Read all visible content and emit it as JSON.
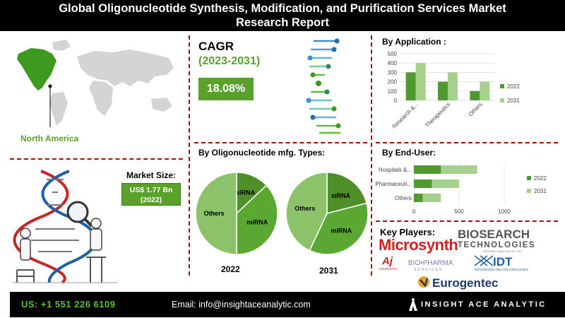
{
  "header": {
    "title_line1": "Global Oligonucleotide Synthesis, Modification, and Purification Services Market",
    "title_line2": "Research Report"
  },
  "map": {
    "region_label": "North America"
  },
  "cagr": {
    "title": "CAGR",
    "years": "(2023-2031)",
    "value": "18.08%"
  },
  "market_size": {
    "label": "Market Size:",
    "value": "US$ 1.77 Bn",
    "year": "(2022)"
  },
  "pies": {
    "title": "By Oligonucleotide mfg. Types:",
    "charts": [
      {
        "year": "2022",
        "slices": [
          {
            "label": "siRNA",
            "value": 13
          },
          {
            "label": "miRNA",
            "value": 37
          },
          {
            "label": "Others",
            "value": 50
          }
        ]
      },
      {
        "year": "2031",
        "slices": [
          {
            "label": "siRNA",
            "value": 21
          },
          {
            "label": "miRNA",
            "value": 36
          },
          {
            "label": "Others",
            "value": 43
          }
        ]
      }
    ]
  },
  "chart_data": [
    {
      "type": "bar",
      "title": "By Application :",
      "categories": [
        "Research &...",
        "Therapeutics",
        "Others"
      ],
      "series": [
        {
          "name": "2022",
          "values": [
            300,
            200,
            100
          ]
        },
        {
          "name": "2031",
          "values": [
            400,
            300,
            200
          ]
        }
      ],
      "ylim": [
        0,
        500
      ],
      "yticks": [
        "0",
        "100",
        "200",
        "300",
        "400",
        "500"
      ],
      "legend": "right",
      "colors": [
        "#4e9a2f",
        "#a8d08d"
      ]
    },
    {
      "type": "bar",
      "orientation": "horizontal",
      "title": "By  End-User:",
      "categories": [
        "Hospitals &...",
        "Pharmaceuti...",
        "Others"
      ],
      "series": [
        {
          "name": "2022",
          "values": [
            300,
            200,
            100
          ]
        },
        {
          "name": "2031",
          "values": [
            400,
            300,
            200
          ]
        }
      ],
      "xlim": [
        0,
        1000
      ],
      "xticks": [
        "0",
        "500",
        "1000"
      ],
      "legend": "right",
      "colors": [
        "#4e9a2f",
        "#a8d08d"
      ]
    }
  ],
  "key_players": {
    "title": "Key Players:",
    "microsynth": "Microsynth",
    "biosearch_line1": "BIOSEARCH",
    "biosearch_line2": "TECHNOLOGIES",
    "biosearch_tag": "GENOMIC ANALYSIS BY LGC",
    "ajinomoto": "AJINOMOTO",
    "biopharma_line1": "BIO•PHARMA",
    "biopharma_line2": "SERVICES",
    "idt": "IDT",
    "idt_tag": "INTEGRATED DNA TECHNOLOGIES",
    "eurogentec": "Eurogentec"
  },
  "footer": {
    "phone": "US: +1 551 226 6109",
    "email": "Email: info@insightaceanalytic.com",
    "brand": "INSIGHT ACE ANALYTIC"
  },
  "colors": {
    "green": "#5aa02c",
    "dark_green": "#4e9a2f",
    "light_green": "#a8d08d",
    "divider": "#a01010"
  }
}
